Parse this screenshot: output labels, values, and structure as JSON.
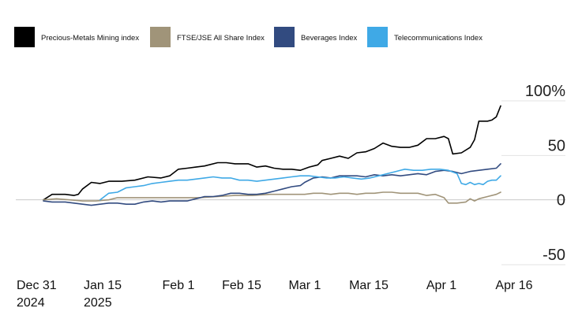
{
  "chart_data": {
    "type": "line",
    "title": "",
    "xlabel": "",
    "ylabel": "",
    "legend_position": "top-left",
    "ylim": [
      -50,
      100
    ],
    "y_ticks": [
      {
        "value": 100,
        "label": "100%"
      },
      {
        "value": 50,
        "label": "50"
      },
      {
        "value": 0,
        "label": "0"
      },
      {
        "value": -50,
        "label": "-50"
      }
    ],
    "xlim": [
      0,
      107
    ],
    "x_ticks": [
      {
        "value": 0,
        "label_line1": "Dec 31",
        "label_line2": "2024"
      },
      {
        "value": 15,
        "label_line1": "Jan 15",
        "label_line2": "2025"
      },
      {
        "value": 32,
        "label_line1": "Feb 1",
        "label_line2": ""
      },
      {
        "value": 46,
        "label_line1": "Feb 15",
        "label_line2": ""
      },
      {
        "value": 60,
        "label_line1": "Mar 1",
        "label_line2": ""
      },
      {
        "value": 74,
        "label_line1": "Mar 15",
        "label_line2": ""
      },
      {
        "value": 91,
        "label_line1": "Apr 1",
        "label_line2": ""
      },
      {
        "value": 106,
        "label_line1": "Apr 16",
        "label_line2": ""
      }
    ],
    "series": [
      {
        "name": "Precious-Metals Mining index",
        "color": "#000000",
        "points": [
          [
            0,
            0
          ],
          [
            2,
            5
          ],
          [
            5,
            5
          ],
          [
            7,
            4
          ],
          [
            8,
            5
          ],
          [
            9,
            10
          ],
          [
            11,
            16
          ],
          [
            13,
            15
          ],
          [
            15,
            17
          ],
          [
            18,
            17
          ],
          [
            21,
            18
          ],
          [
            24,
            21
          ],
          [
            27,
            20
          ],
          [
            29,
            22
          ],
          [
            31,
            28
          ],
          [
            33,
            29
          ],
          [
            35,
            30
          ],
          [
            37,
            31
          ],
          [
            40,
            34
          ],
          [
            42,
            34
          ],
          [
            44,
            33
          ],
          [
            47,
            33
          ],
          [
            49,
            30
          ],
          [
            51,
            31
          ],
          [
            53,
            29
          ],
          [
            55,
            28
          ],
          [
            57,
            28
          ],
          [
            59,
            27
          ],
          [
            61,
            30
          ],
          [
            63,
            32
          ],
          [
            64,
            36
          ],
          [
            66,
            38
          ],
          [
            68,
            40
          ],
          [
            70,
            38
          ],
          [
            72,
            43
          ],
          [
            74,
            44
          ],
          [
            76,
            47
          ],
          [
            78,
            52
          ],
          [
            80,
            49
          ],
          [
            82,
            48
          ],
          [
            84,
            48
          ],
          [
            86,
            50
          ],
          [
            88,
            56
          ],
          [
            90,
            56
          ],
          [
            92,
            58
          ],
          [
            93,
            56
          ],
          [
            94,
            42
          ],
          [
            96,
            43
          ],
          [
            98,
            48
          ],
          [
            99,
            55
          ],
          [
            100,
            72
          ],
          [
            102,
            72
          ],
          [
            103,
            73
          ],
          [
            104,
            76
          ],
          [
            105,
            86
          ]
        ]
      },
      {
        "name": "FTSE/JSE All Share Index",
        "color": "#a09479",
        "points": [
          [
            0,
            0
          ],
          [
            3,
            1
          ],
          [
            6,
            0
          ],
          [
            9,
            -1
          ],
          [
            12,
            -1
          ],
          [
            15,
            0
          ],
          [
            17,
            2
          ],
          [
            20,
            2
          ],
          [
            24,
            2
          ],
          [
            28,
            2
          ],
          [
            32,
            2
          ],
          [
            36,
            2
          ],
          [
            40,
            3
          ],
          [
            44,
            4
          ],
          [
            48,
            4
          ],
          [
            52,
            5
          ],
          [
            56,
            5
          ],
          [
            60,
            5
          ],
          [
            62,
            6
          ],
          [
            64,
            6
          ],
          [
            66,
            5
          ],
          [
            68,
            6
          ],
          [
            70,
            6
          ],
          [
            72,
            5
          ],
          [
            74,
            6
          ],
          [
            76,
            6
          ],
          [
            78,
            7
          ],
          [
            80,
            7
          ],
          [
            82,
            6
          ],
          [
            84,
            6
          ],
          [
            86,
            6
          ],
          [
            88,
            4
          ],
          [
            90,
            5
          ],
          [
            92,
            2
          ],
          [
            93,
            -3
          ],
          [
            95,
            -3
          ],
          [
            97,
            -2
          ],
          [
            98,
            1
          ],
          [
            99,
            -1
          ],
          [
            100,
            1
          ],
          [
            102,
            3
          ],
          [
            104,
            5
          ],
          [
            105,
            7
          ]
        ]
      },
      {
        "name": "Beverages Index",
        "color": "#324b80",
        "points": [
          [
            0,
            -1
          ],
          [
            2,
            -2
          ],
          [
            5,
            -2
          ],
          [
            7,
            -3
          ],
          [
            9,
            -4
          ],
          [
            11,
            -5
          ],
          [
            13,
            -4
          ],
          [
            15,
            -3
          ],
          [
            17,
            -3
          ],
          [
            19,
            -4
          ],
          [
            21,
            -4
          ],
          [
            23,
            -2
          ],
          [
            25,
            -1
          ],
          [
            27,
            -2
          ],
          [
            29,
            -1
          ],
          [
            31,
            -1
          ],
          [
            33,
            -1
          ],
          [
            35,
            1
          ],
          [
            37,
            3
          ],
          [
            39,
            3
          ],
          [
            41,
            4
          ],
          [
            43,
            6
          ],
          [
            45,
            6
          ],
          [
            47,
            5
          ],
          [
            49,
            5
          ],
          [
            51,
            6
          ],
          [
            53,
            8
          ],
          [
            55,
            10
          ],
          [
            57,
            12
          ],
          [
            59,
            13
          ],
          [
            60,
            16
          ],
          [
            62,
            20
          ],
          [
            64,
            21
          ],
          [
            66,
            20
          ],
          [
            68,
            22
          ],
          [
            70,
            22
          ],
          [
            72,
            22
          ],
          [
            74,
            21
          ],
          [
            76,
            23
          ],
          [
            78,
            22
          ],
          [
            80,
            23
          ],
          [
            82,
            22
          ],
          [
            84,
            23
          ],
          [
            86,
            24
          ],
          [
            88,
            23
          ],
          [
            90,
            26
          ],
          [
            92,
            27
          ],
          [
            94,
            26
          ],
          [
            96,
            24
          ],
          [
            98,
            26
          ],
          [
            100,
            27
          ],
          [
            102,
            28
          ],
          [
            104,
            29
          ],
          [
            105,
            33
          ]
        ]
      },
      {
        "name": "Telecommunications Index",
        "color": "#3fa9e6",
        "points": [
          [
            13,
            0
          ],
          [
            15,
            6
          ],
          [
            17,
            7
          ],
          [
            19,
            11
          ],
          [
            21,
            12
          ],
          [
            23,
            13
          ],
          [
            25,
            15
          ],
          [
            27,
            16
          ],
          [
            29,
            17
          ],
          [
            31,
            18
          ],
          [
            33,
            18
          ],
          [
            35,
            19
          ],
          [
            37,
            20
          ],
          [
            39,
            21
          ],
          [
            41,
            20
          ],
          [
            43,
            20
          ],
          [
            45,
            18
          ],
          [
            47,
            18
          ],
          [
            49,
            17
          ],
          [
            51,
            18
          ],
          [
            53,
            19
          ],
          [
            55,
            20
          ],
          [
            57,
            21
          ],
          [
            59,
            22
          ],
          [
            61,
            22
          ],
          [
            63,
            21
          ],
          [
            65,
            20
          ],
          [
            67,
            20
          ],
          [
            69,
            21
          ],
          [
            71,
            20
          ],
          [
            73,
            19
          ],
          [
            75,
            20
          ],
          [
            77,
            22
          ],
          [
            79,
            24
          ],
          [
            81,
            26
          ],
          [
            83,
            28
          ],
          [
            85,
            27
          ],
          [
            87,
            27
          ],
          [
            89,
            28
          ],
          [
            91,
            28
          ],
          [
            93,
            27
          ],
          [
            95,
            24
          ],
          [
            96,
            15
          ],
          [
            97,
            14
          ],
          [
            98,
            16
          ],
          [
            99,
            14
          ],
          [
            100,
            15
          ],
          [
            101,
            14
          ],
          [
            102,
            17
          ],
          [
            103,
            18
          ],
          [
            104,
            18
          ],
          [
            105,
            22
          ]
        ]
      }
    ]
  }
}
